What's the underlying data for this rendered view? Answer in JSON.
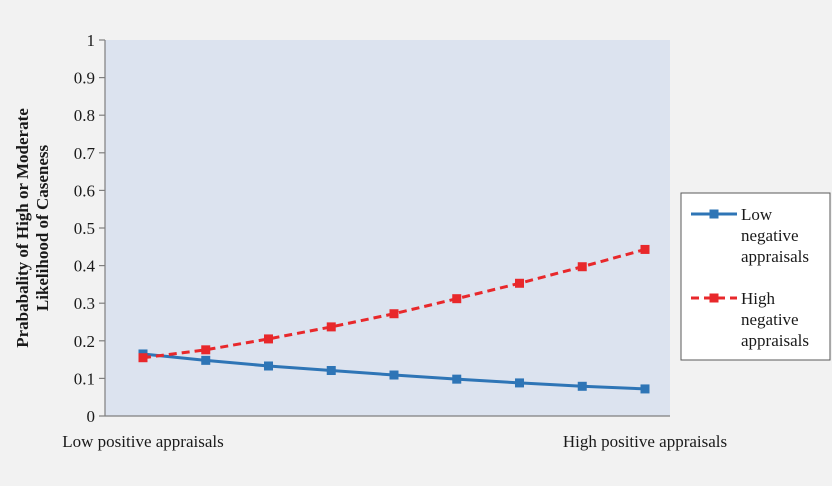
{
  "chart_data": {
    "type": "line",
    "ylabel_lines": [
      "Prababality of High or Moderate",
      "Likelihood of Caseness"
    ],
    "x_labels": [
      "Low positive appraisals",
      "High positive appraisals"
    ],
    "ylim": [
      0,
      1
    ],
    "y_ticks": [
      "0",
      "0.1",
      "0.2",
      "0.3",
      "0.4",
      "0.5",
      "0.6",
      "0.7",
      "0.8",
      "0.9",
      "1"
    ],
    "grid": false,
    "legend_position": "right",
    "x": [
      1,
      2,
      3,
      4,
      5,
      6,
      7,
      8,
      9
    ],
    "series": [
      {
        "name_lines": [
          "Low",
          "negative",
          "appraisals"
        ],
        "color": "#2e75b6",
        "style": "solid",
        "values": [
          0.165,
          0.148,
          0.133,
          0.121,
          0.109,
          0.098,
          0.088,
          0.079,
          0.072
        ]
      },
      {
        "name_lines": [
          "High",
          "negative",
          "appraisals"
        ],
        "color": "#e8282b",
        "style": "dashed",
        "values": [
          0.155,
          0.176,
          0.205,
          0.237,
          0.272,
          0.312,
          0.353,
          0.397,
          0.443
        ]
      }
    ],
    "plot_background": "#dce3ef"
  }
}
